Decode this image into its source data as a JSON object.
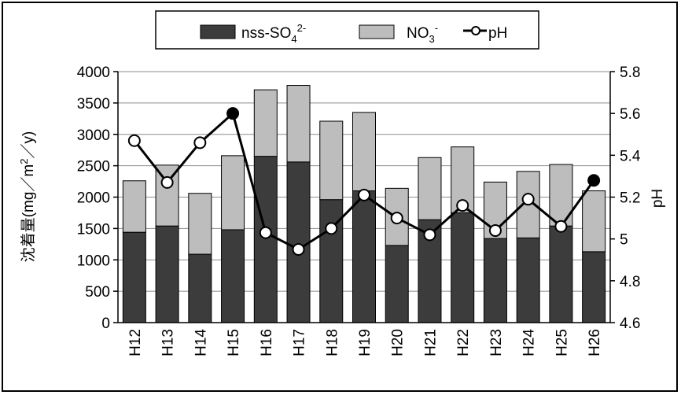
{
  "chart_data": {
    "type": "bar",
    "stacked": true,
    "categories": [
      "H12",
      "H13",
      "H14",
      "H15",
      "H16",
      "H17",
      "H18",
      "H19",
      "H20",
      "H21",
      "H22",
      "H23",
      "H24",
      "H25",
      "H26"
    ],
    "series": [
      {
        "name": "nss-SO",
        "name_sub": "4",
        "name_sup": "2-",
        "color": "#3c3c3c",
        "values": [
          1440,
          1540,
          1090,
          1480,
          2650,
          2560,
          1960,
          2100,
          1230,
          1640,
          1750,
          1340,
          1350,
          1540,
          1130
        ]
      },
      {
        "name": "NO",
        "name_sub": "3",
        "name_sup": "-",
        "color": "#bdbdbd",
        "values": [
          820,
          970,
          970,
          1180,
          1060,
          1220,
          1250,
          1250,
          910,
          990,
          1050,
          900,
          1060,
          980,
          970
        ]
      }
    ],
    "line": {
      "name": "pH",
      "values": [
        5.47,
        5.27,
        5.46,
        5.6,
        5.03,
        4.95,
        5.05,
        5.21,
        5.1,
        5.02,
        5.16,
        5.04,
        5.19,
        5.06,
        5.28
      ],
      "filled_markers": [
        3,
        14
      ]
    },
    "ylabel": "沈着量(mg／m²／y)",
    "ylabel_parts": [
      "沈着量(mg／m",
      "2",
      "／y)"
    ],
    "y2label": "pH",
    "ylim": [
      0,
      4000
    ],
    "y_ticks": [
      "0",
      "500",
      "1000",
      "1500",
      "2000",
      "2500",
      "3000",
      "3500",
      "4000"
    ],
    "y2lim": [
      4.6,
      5.8
    ],
    "y2_ticks": [
      "4.6",
      "4.8",
      "5",
      "5.2",
      "5.4",
      "5.6",
      "5.8"
    ],
    "grid": true,
    "legend_position": "top-center"
  }
}
